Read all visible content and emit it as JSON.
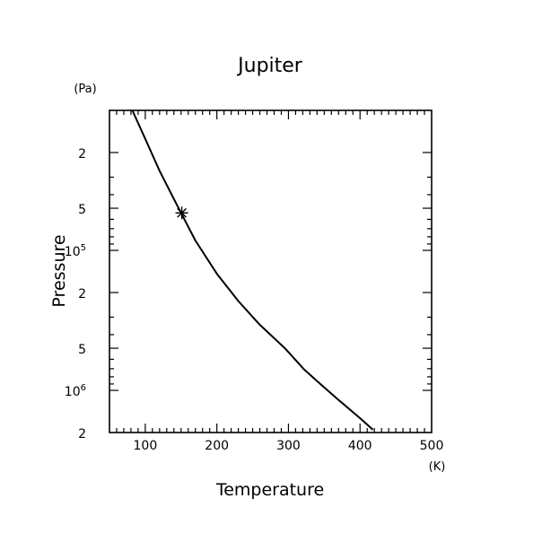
{
  "chart_data": {
    "type": "line",
    "title": "Jupiter",
    "xlabel": "Temperature",
    "ylabel": "Pressure",
    "x_unit": "(K)",
    "y_unit": "(Pa)",
    "xlim": [
      50,
      500
    ],
    "ylim": [
      10000,
      2000000
    ],
    "y_scale": "log",
    "y_reversed": true,
    "x_ticks": [
      100,
      200,
      300,
      400,
      500
    ],
    "y_tick_labels": [
      {
        "value": 20000,
        "mantissa": "2",
        "exponent": ""
      },
      {
        "value": 50000,
        "mantissa": "5",
        "exponent": ""
      },
      {
        "value": 100000,
        "mantissa": "10",
        "exponent": "5"
      },
      {
        "value": 200000,
        "mantissa": "2",
        "exponent": ""
      },
      {
        "value": 500000,
        "mantissa": "5",
        "exponent": ""
      },
      {
        "value": 1000000,
        "mantissa": "10",
        "exponent": "6"
      },
      {
        "value": 2000000,
        "mantissa": "2",
        "exponent": ""
      }
    ],
    "series": [
      {
        "color": "#000000",
        "points": [
          [
            82,
            10000
          ],
          [
            100,
            16000
          ],
          [
            120,
            27000
          ],
          [
            140,
            43000
          ],
          [
            150,
            54000
          ],
          [
            170,
            85000
          ],
          [
            200,
            147000
          ],
          [
            230,
            230000
          ],
          [
            260,
            340000
          ],
          [
            295,
            500000
          ],
          [
            322,
            710000
          ],
          [
            340,
            860000
          ],
          [
            370,
            1170000
          ],
          [
            400,
            1580000
          ],
          [
            418,
            1910000
          ]
        ]
      }
    ],
    "marker": {
      "x": 151,
      "y": 54000,
      "symbol": "asterisk"
    }
  }
}
